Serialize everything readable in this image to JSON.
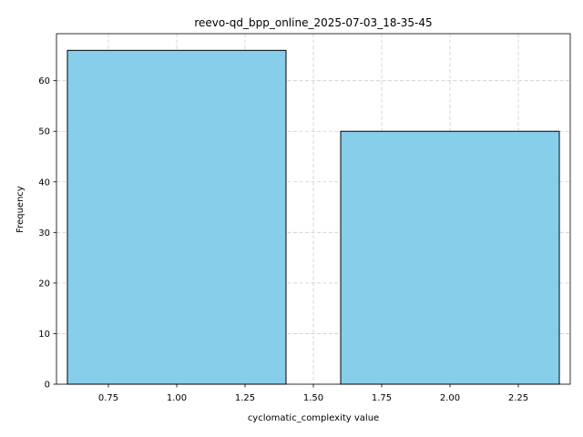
{
  "chart_data": {
    "type": "bar",
    "title": "reevo-qd_bpp_online_2025-07-03_18-35-45",
    "xlabel": "cyclomatic_complexity value",
    "ylabel": "Frequency",
    "bars": [
      {
        "x_start": 0.6,
        "x_end": 1.4,
        "value": 66
      },
      {
        "x_start": 1.6,
        "x_end": 2.4,
        "value": 50
      }
    ],
    "xlim": [
      0.56,
      2.44
    ],
    "ylim": [
      0,
      69.3
    ],
    "xticks": [
      0.75,
      1.0,
      1.25,
      1.5,
      1.75,
      2.0,
      2.25
    ],
    "xtick_labels": [
      "0.75",
      "1.00",
      "1.25",
      "1.50",
      "1.75",
      "2.00",
      "2.25"
    ],
    "yticks": [
      0,
      10,
      20,
      30,
      40,
      50,
      60
    ],
    "ytick_labels": [
      "0",
      "10",
      "20",
      "30",
      "40",
      "50",
      "60"
    ],
    "grid": true,
    "bar_color": "#87ceeb",
    "edge_color": "#000000",
    "grid_color": "#cccccc"
  }
}
